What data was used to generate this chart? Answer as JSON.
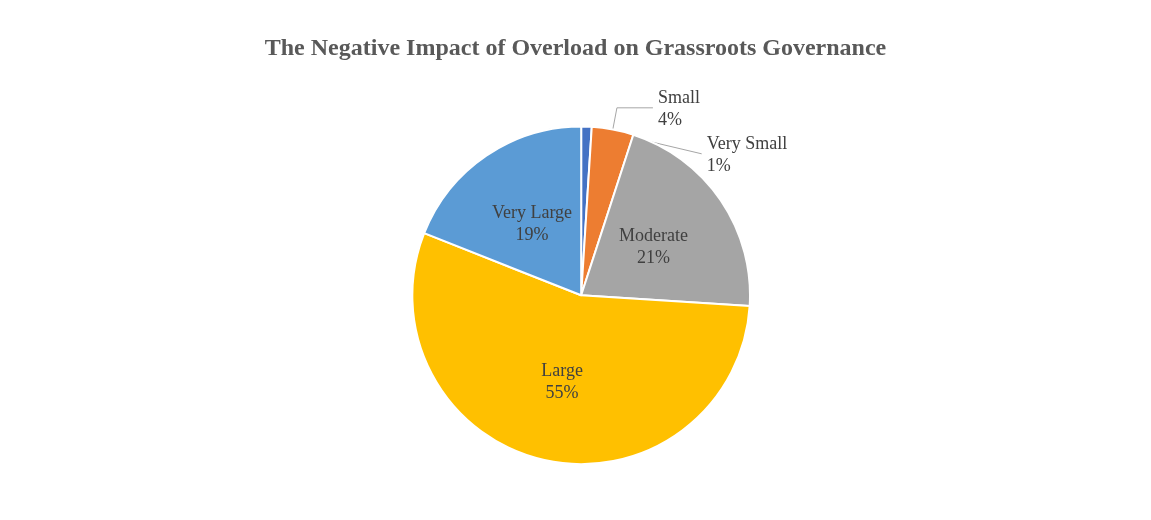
{
  "chart_data": {
    "type": "pie",
    "title": "The Negative Impact of Overload on Grassroots Governance",
    "categories": [
      "Very Small",
      "Small",
      "Moderate",
      "Large",
      "Very Large"
    ],
    "values": [
      1,
      4,
      21,
      55,
      19
    ],
    "value_labels": [
      "1%",
      "4%",
      "21%",
      "55%",
      "19%"
    ],
    "colors": [
      "#4472c4",
      "#ed7d31",
      "#a5a5a5",
      "#ffc000",
      "#5b9bd5"
    ],
    "legend": false
  }
}
